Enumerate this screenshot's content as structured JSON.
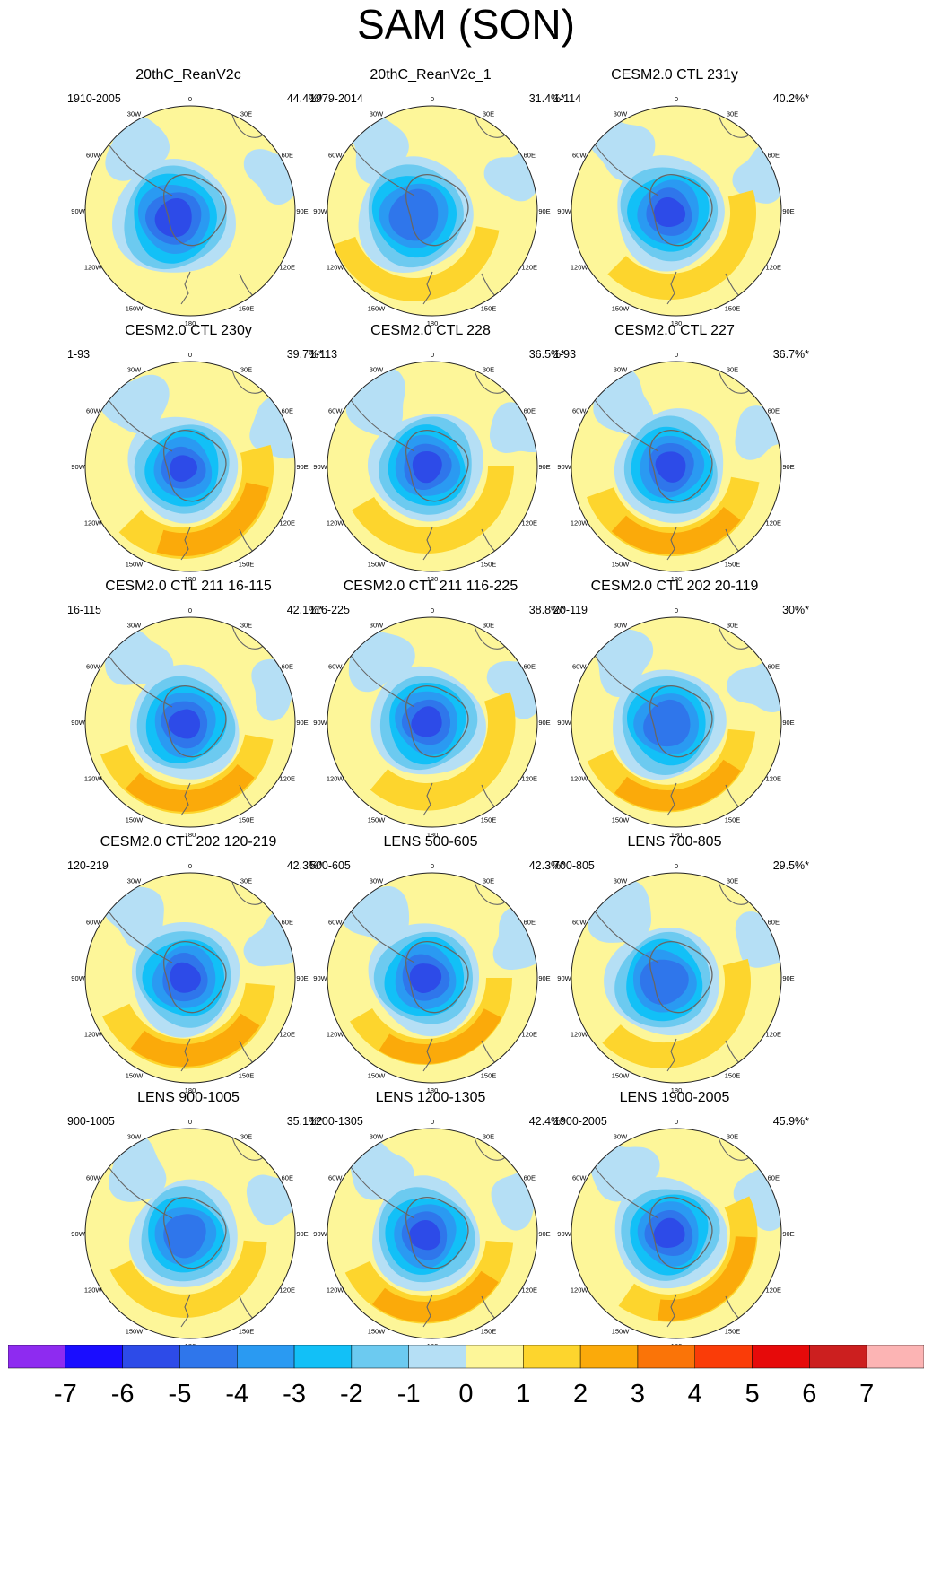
{
  "title": "SAM (SON)",
  "colors": {
    "levels": [
      "#8e2bf0",
      "#1a0dff",
      "#2d4be8",
      "#2f76eb",
      "#2a9af2",
      "#12c0f7",
      "#6ccaf0",
      "#b5dff5",
      "#fdf699",
      "#fdd52d",
      "#fbaa0a",
      "#fa7408",
      "#fa3c08",
      "#e60a0a",
      "#cc1f1f",
      "#fcb4b4"
    ],
    "coast": "#666666",
    "outline": "#222222"
  },
  "colorbar": {
    "ticks": [
      "-7",
      "-6",
      "-5",
      "-4",
      "-3",
      "-2",
      "-1",
      "0",
      "1",
      "2",
      "3",
      "4",
      "5",
      "6",
      "7"
    ]
  },
  "lon_labels": [
    "0",
    "30E",
    "60E",
    "90E",
    "120E",
    "150E",
    "180",
    "150W",
    "120W",
    "90W",
    "60W",
    "30W"
  ],
  "chart_data": {
    "type": "heatmap",
    "projection": "south-polar-stereographic",
    "title": "SAM (SON)",
    "colorbar_range": [
      -7,
      7
    ],
    "colorbar_interval": 1,
    "panels": [
      {
        "title": "20thC_ReanV2c",
        "period": "1910-2005",
        "variance": "44.4%*",
        "core": -5,
        "ring": 1,
        "offset": [
          -18,
          8
        ],
        "inner": 62,
        "ring_peak": [
          195,
          0.45
        ]
      },
      {
        "title": "20thC_ReanV2c_1",
        "period": "1979-2014",
        "variance": "31.4%*",
        "core": -4,
        "ring": 2,
        "offset": [
          -20,
          5
        ],
        "inner": 60,
        "ring_peak": [
          175,
          0.6
        ]
      },
      {
        "title": "CESM2.0 CTL 231y",
        "period": "1-114",
        "variance": "40.2%*",
        "core": -5,
        "ring": 2,
        "offset": [
          -8,
          2
        ],
        "inner": 58,
        "ring_peak": [
          150,
          0.7
        ]
      },
      {
        "title": "CESM2.0 CTL 230y",
        "period": "1-93",
        "variance": "39.7%*",
        "core": -5,
        "ring": 3,
        "offset": [
          -8,
          2
        ],
        "inner": 56,
        "ring_peak": [
          150,
          0.9
        ]
      },
      {
        "title": "CESM2.0 CTL 228",
        "period": "1-113",
        "variance": "36.5%*",
        "core": -5,
        "ring": 2,
        "offset": [
          -6,
          0
        ],
        "inner": 58,
        "ring_peak": [
          165,
          0.7
        ]
      },
      {
        "title": "CESM2.0 CTL 227",
        "period": "1-93",
        "variance": "36.7%*",
        "core": -5,
        "ring": 3,
        "offset": [
          -6,
          0
        ],
        "inner": 58,
        "ring_peak": [
          175,
          0.8
        ]
      },
      {
        "title": "CESM2.0 CTL 211 16-115",
        "period": "16-115",
        "variance": "42.1%*",
        "core": -5,
        "ring": 3,
        "offset": [
          -6,
          2
        ],
        "inner": 58,
        "ring_peak": [
          175,
          0.8
        ]
      },
      {
        "title": "CESM2.0 CTL 211 116-225",
        "period": "116-225",
        "variance": "38.8%*",
        "core": -5,
        "ring": 2,
        "offset": [
          -6,
          0
        ],
        "inner": 58,
        "ring_peak": [
          145,
          0.75
        ]
      },
      {
        "title": "CESM2.0 CTL 202 20-119",
        "period": "20-119",
        "variance": "30%*",
        "core": -4,
        "ring": 3,
        "offset": [
          -10,
          2
        ],
        "inner": 58,
        "ring_peak": [
          170,
          0.75
        ]
      },
      {
        "title": "CESM2.0 CTL 202 120-219",
        "period": "120-219",
        "variance": "42.3%*",
        "core": -5,
        "ring": 3,
        "offset": [
          -6,
          0
        ],
        "inner": 58,
        "ring_peak": [
          170,
          0.85
        ]
      },
      {
        "title": "LENS 500-605",
        "period": "500-605",
        "variance": "42.3%*",
        "core": -5,
        "ring": 3,
        "offset": [
          -8,
          0
        ],
        "inner": 58,
        "ring_peak": [
          165,
          0.7
        ]
      },
      {
        "title": "LENS 700-805",
        "period": "700-805",
        "variance": "29.5%*",
        "core": -4,
        "ring": 2,
        "offset": [
          -14,
          4
        ],
        "inner": 58,
        "ring_peak": [
          150,
          0.7
        ]
      },
      {
        "title": "LENS 900-1005",
        "period": "900-1005",
        "variance": "35.1%*",
        "core": -4,
        "ring": 2,
        "offset": [
          -6,
          2
        ],
        "inner": 56,
        "ring_peak": [
          170,
          0.6
        ]
      },
      {
        "title": "LENS 1200-1305",
        "period": "1200-1305",
        "variance": "42.4%*",
        "core": -5,
        "ring": 3,
        "offset": [
          -8,
          2
        ],
        "inner": 58,
        "ring_peak": [
          170,
          0.75
        ]
      },
      {
        "title": "LENS 1900-2005",
        "period": "1900-2005",
        "variance": "45.9%*",
        "core": -5,
        "ring": 3,
        "offset": [
          -8,
          0
        ],
        "inner": 58,
        "ring_peak": [
          140,
          0.75
        ]
      }
    ]
  }
}
